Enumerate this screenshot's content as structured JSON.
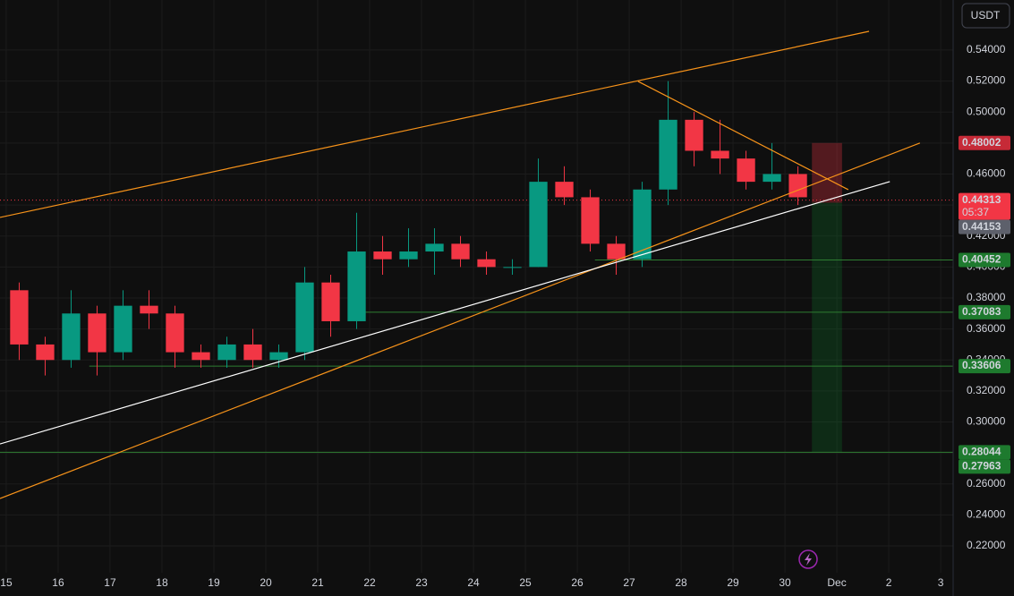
{
  "chart_data": {
    "type": "candlestick",
    "currency": "USDT",
    "xlim": [
      -0.12,
      18.24
    ],
    "ylim": [
      0.2027,
      0.5723
    ],
    "xticks": [
      {
        "value": 0,
        "label": "15"
      },
      {
        "value": 1,
        "label": "16"
      },
      {
        "value": 2,
        "label": "17"
      },
      {
        "value": 3,
        "label": "18"
      },
      {
        "value": 4,
        "label": "19"
      },
      {
        "value": 5,
        "label": "20"
      },
      {
        "value": 6,
        "label": "21"
      },
      {
        "value": 7,
        "label": "22"
      },
      {
        "value": 8,
        "label": "23"
      },
      {
        "value": 9,
        "label": "24"
      },
      {
        "value": 10,
        "label": "25"
      },
      {
        "value": 11,
        "label": "26"
      },
      {
        "value": 12,
        "label": "27"
      },
      {
        "value": 13,
        "label": "28"
      },
      {
        "value": 14,
        "label": "29"
      },
      {
        "value": 15,
        "label": "30"
      },
      {
        "value": 16,
        "label": "Dec"
      },
      {
        "value": 17,
        "label": "2"
      },
      {
        "value": 18,
        "label": "3"
      }
    ],
    "yticks": [
      {
        "value": 0.22,
        "label": "0.22000"
      },
      {
        "value": 0.24,
        "label": "0.24000"
      },
      {
        "value": 0.26,
        "label": "0.26000"
      },
      {
        "value": 0.28,
        "label": "0.28000"
      },
      {
        "value": 0.3,
        "label": "0.30000"
      },
      {
        "value": 0.32,
        "label": "0.32000"
      },
      {
        "value": 0.34,
        "label": "0.34000"
      },
      {
        "value": 0.36,
        "label": "0.36000"
      },
      {
        "value": 0.38,
        "label": "0.38000"
      },
      {
        "value": 0.4,
        "label": "0.40000"
      },
      {
        "value": 0.42,
        "label": "0.42000"
      },
      {
        "value": 0.44,
        "label": "0.44000"
      },
      {
        "value": 0.46,
        "label": "0.46000"
      },
      {
        "value": 0.48,
        "label": "0.48000"
      },
      {
        "value": 0.5,
        "label": "0.50000"
      },
      {
        "value": 0.52,
        "label": "0.52000"
      },
      {
        "value": 0.54,
        "label": "0.54000"
      }
    ],
    "grid": true,
    "up_color": "#089981",
    "down_color": "#f23645",
    "x": [
      0.25,
      0.75,
      1.25,
      1.75,
      2.25,
      2.75,
      3.25,
      3.75,
      4.25,
      4.75,
      5.25,
      5.75,
      6.25,
      6.75,
      7.25,
      7.75,
      8.25,
      8.75,
      9.25,
      9.75,
      10.25,
      10.75,
      11.25,
      11.75,
      12.25,
      12.75,
      13.25,
      13.75,
      14.25,
      14.75,
      15.25
    ],
    "open": [
      0.385,
      0.35,
      0.34,
      0.37,
      0.345,
      0.375,
      0.37,
      0.345,
      0.34,
      0.35,
      0.34,
      0.345,
      0.39,
      0.365,
      0.41,
      0.405,
      0.41,
      0.415,
      0.405,
      0.4,
      0.4,
      0.455,
      0.445,
      0.415,
      0.405,
      0.45,
      0.495,
      0.475,
      0.47,
      0.455,
      0.46
    ],
    "high": [
      0.39,
      0.355,
      0.385,
      0.375,
      0.385,
      0.385,
      0.375,
      0.35,
      0.355,
      0.36,
      0.35,
      0.4,
      0.395,
      0.435,
      0.42,
      0.425,
      0.425,
      0.42,
      0.41,
      0.405,
      0.47,
      0.465,
      0.45,
      0.42,
      0.455,
      0.52,
      0.5,
      0.495,
      0.475,
      0.48,
      0.465
    ],
    "low": [
      0.34,
      0.33,
      0.335,
      0.33,
      0.34,
      0.36,
      0.335,
      0.335,
      0.335,
      0.335,
      0.335,
      0.34,
      0.355,
      0.36,
      0.395,
      0.4,
      0.395,
      0.4,
      0.395,
      0.395,
      0.4,
      0.44,
      0.41,
      0.395,
      0.4,
      0.44,
      0.465,
      0.46,
      0.45,
      0.45,
      0.44
    ],
    "close": [
      0.35,
      0.34,
      0.37,
      0.345,
      0.375,
      0.37,
      0.345,
      0.34,
      0.35,
      0.34,
      0.345,
      0.39,
      0.365,
      0.41,
      0.405,
      0.41,
      0.415,
      0.405,
      0.4,
      0.4,
      0.455,
      0.445,
      0.415,
      0.405,
      0.45,
      0.495,
      0.475,
      0.47,
      0.455,
      0.46,
      0.445
    ],
    "lines": [
      {
        "color": "#f7931a",
        "x": [
          -0.12,
          16.62
        ],
        "y": [
          0.432,
          0.5521
        ]
      },
      {
        "color": "#f7931a",
        "x": [
          -0.12,
          17.6
        ],
        "y": [
          0.2506,
          0.48
        ]
      },
      {
        "color": "#ffffff",
        "x": [
          -0.12,
          17.02
        ],
        "y": [
          0.2858,
          0.4551
        ]
      },
      {
        "color": "#f7931a",
        "x": [
          12.17,
          16.22
        ],
        "y": [
          0.5198,
          0.4499
        ]
      }
    ],
    "levels": [
      {
        "value": 0.40452,
        "start": 11.34,
        "color": "#2e7d32"
      },
      {
        "value": 0.37083,
        "start": 6.78,
        "color": "#2e7d32"
      },
      {
        "value": 0.33606,
        "start": 1.6,
        "color": "#2e7d32"
      },
      {
        "value": 0.28044,
        "start": -0.12,
        "color": "#2e7d32"
      }
    ],
    "position": {
      "x": [
        15.52,
        16.1
      ],
      "stop": 0.48002,
      "entry": 0.4415,
      "target": 0.28044
    },
    "price_labels": [
      {
        "value": 0.48002,
        "color": "#c62a37"
      },
      {
        "value": 0.44313,
        "sub": "05:37",
        "color": "#f23645"
      },
      {
        "value": 0.44153,
        "color": "#5d606b"
      },
      {
        "value": 0.40452,
        "color": "#1e7a2e"
      },
      {
        "value": 0.37083,
        "color": "#1e7a2e"
      },
      {
        "value": 0.33606,
        "color": "#1e7a2e"
      },
      {
        "value": 0.28044,
        "color": "#1e7a2e"
      },
      {
        "value": 0.27963,
        "color": "#1e7a2e"
      }
    ]
  }
}
